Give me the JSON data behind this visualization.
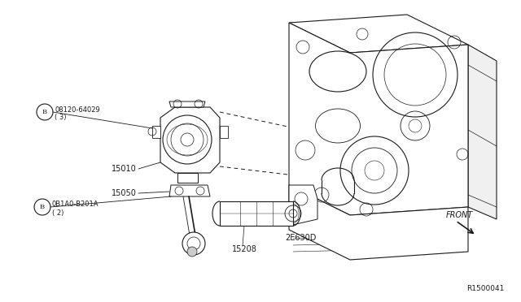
{
  "bg_color": "#ffffff",
  "line_color": "#1a1a1a",
  "lw": 0.8,
  "ref_code": "R1500041",
  "labels": {
    "bolt1_num": "08120-64029",
    "bolt1_qty": "( 3)",
    "bolt2_num": "0B1A0-B201A",
    "bolt2_qty": "( 2)",
    "part15010": "15010",
    "part15050": "15050",
    "part2E630D": "2E630D",
    "part15208": "15208",
    "front": "FRONT"
  },
  "figsize": [
    6.4,
    3.72
  ],
  "dpi": 100
}
